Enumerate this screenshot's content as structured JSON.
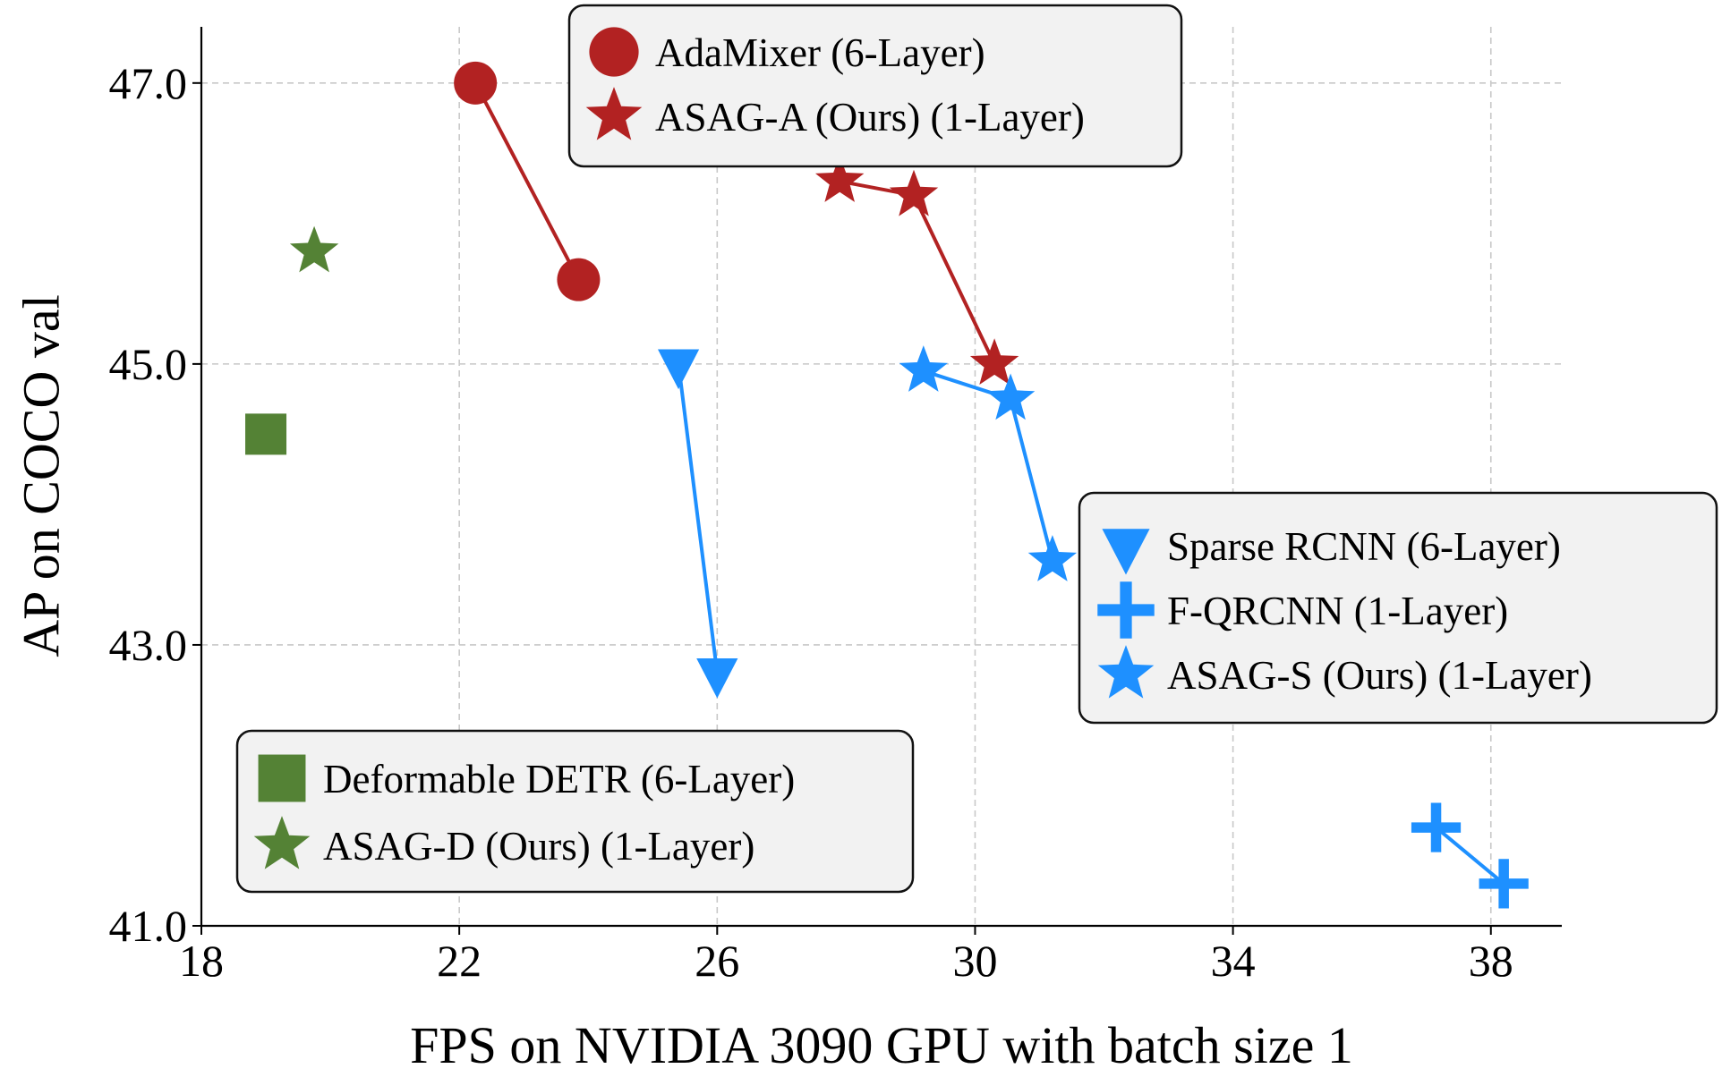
{
  "chart_data": {
    "type": "line",
    "title": "",
    "xlabel": "FPS on NVIDIA 3090 GPU with batch size 1",
    "ylabel": "AP on COCO val",
    "xlim": [
      18,
      39.1
    ],
    "ylim": [
      41.0,
      47.4
    ],
    "xticks": [
      18,
      22,
      26,
      30,
      34,
      38
    ],
    "xtick_labels": [
      "18",
      "22",
      "26",
      "30",
      "34",
      "38"
    ],
    "yticks": [
      41.0,
      43.0,
      45.0,
      47.0
    ],
    "ytick_labels": [
      "41.0",
      "43.0",
      "45.0",
      "47.0"
    ],
    "grid": true,
    "series": [
      {
        "name": "AdaMixer (6-Layer)",
        "color": "#b22222",
        "marker": "circle",
        "points": [
          [
            22.25,
            47.0
          ],
          [
            23.85,
            45.6
          ]
        ]
      },
      {
        "name": "ASAG-A (Ours) (1-Layer)",
        "color": "#b22222",
        "marker": "star",
        "points": [
          [
            27.9,
            46.3
          ],
          [
            29.05,
            46.2
          ],
          [
            30.3,
            45.0
          ]
        ]
      },
      {
        "name": "Sparse RCNN (6-Layer)",
        "color": "#1e90ff",
        "marker": "triangle-down",
        "points": [
          [
            25.4,
            45.0
          ],
          [
            26.0,
            42.8
          ]
        ]
      },
      {
        "name": "F-QRCNN (1-Layer)",
        "color": "#1e90ff",
        "marker": "plus",
        "points": [
          [
            37.15,
            41.7
          ],
          [
            38.2,
            41.3
          ]
        ]
      },
      {
        "name": "ASAG-S (Ours) (1-Layer)",
        "color": "#1e90ff",
        "marker": "star",
        "points": [
          [
            29.2,
            44.95
          ],
          [
            30.55,
            44.75
          ],
          [
            31.2,
            43.6
          ]
        ]
      },
      {
        "name": "Deformable DETR (6-Layer)",
        "color": "#548235",
        "marker": "square",
        "points": [
          [
            19.0,
            44.5
          ]
        ]
      },
      {
        "name": "ASAG-D (Ours) (1-Layer)",
        "color": "#548235",
        "marker": "star",
        "points": [
          [
            19.75,
            45.8
          ]
        ]
      }
    ],
    "legends": [
      {
        "placement": "top-center",
        "entries": [
          "AdaMixer (6-Layer)",
          "ASAG-A (Ours) (1-Layer)"
        ]
      },
      {
        "placement": "center-right",
        "entries": [
          "Sparse RCNN (6-Layer)",
          "F-QRCNN (1-Layer)",
          "ASAG-S (Ours) (1-Layer)"
        ]
      },
      {
        "placement": "lower-left",
        "entries": [
          "Deformable DETR (6-Layer)",
          "ASAG-D (Ours) (1-Layer)"
        ]
      }
    ]
  }
}
